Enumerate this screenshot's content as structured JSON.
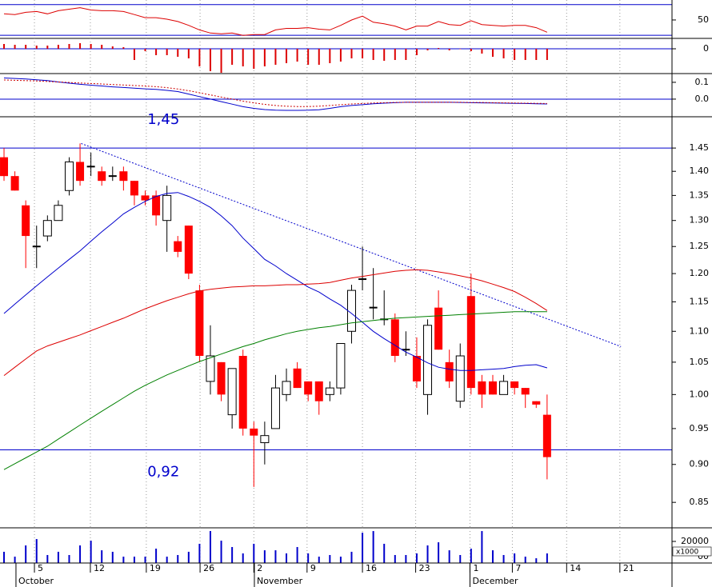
{
  "chart_data": {
    "type": "stock",
    "categories": [
      null,
      null,
      null,
      null,
      null,
      null,
      null,
      null,
      null,
      null,
      null,
      null,
      null,
      null,
      null,
      null,
      null,
      null,
      null,
      null,
      null,
      null,
      null,
      null,
      null,
      null,
      null,
      null,
      null,
      null,
      null,
      null,
      null,
      null,
      null,
      null,
      null,
      null,
      null,
      null,
      null,
      null,
      null,
      null,
      null,
      null,
      null,
      null,
      null,
      null,
      null
    ],
    "xlim": [
      -0.37,
      61.5
    ],
    "xticks": [
      {
        "value": 2.8,
        "label": "5"
      },
      {
        "value": 7.95,
        "label": "12"
      },
      {
        "value": 13.1,
        "label": "19"
      },
      {
        "value": 18.05,
        "label": "26"
      },
      {
        "value": 23.0,
        "label": "2"
      },
      {
        "value": 27.9,
        "label": "9"
      },
      {
        "value": 33.0,
        "label": "16"
      },
      {
        "value": 37.9,
        "label": "23"
      },
      {
        "value": 42.9,
        "label": "1"
      },
      {
        "value": 46.8,
        "label": "7"
      },
      {
        "value": 51.8,
        "label": "14"
      },
      {
        "value": 56.7,
        "label": "21"
      }
    ],
    "month_ticks": [
      {
        "value": 1.1,
        "label": "October"
      },
      {
        "value": 23.05,
        "label": "November"
      },
      {
        "value": 42.9,
        "label": "December"
      }
    ],
    "grid": true,
    "panels": [
      {
        "type": "line",
        "ylim": [
          26,
          76
        ],
        "yticks": [
          50
        ],
        "levels": [
          30,
          70
        ],
        "level_color": "#0000cc",
        "series": [
          {
            "color": "#dd0000",
            "values": [
              58,
              57,
              60,
              61,
              58,
              62,
              64,
              66,
              63,
              62,
              62,
              61,
              57,
              53,
              53,
              51,
              48,
              43,
              37,
              33,
              32,
              33,
              30,
              31,
              31,
              37,
              39,
              39,
              40,
              38,
              37,
              43,
              50,
              55,
              47,
              45,
              42,
              37,
              42,
              42,
              48,
              44,
              43,
              49,
              44,
              43,
              42,
              43,
              43,
              40,
              34
            ]
          }
        ]
      },
      {
        "type": "bar",
        "ylim": [
          -3.1,
          1.3
        ],
        "yticks": [
          0
        ],
        "levels": [
          0
        ],
        "level_color": "#0000cc",
        "color": "#dd0000",
        "values": [
          0.6,
          0.5,
          0.5,
          0.4,
          0.4,
          0.5,
          0.6,
          0.7,
          0.6,
          0.5,
          0.3,
          0.2,
          -1.4,
          -0.3,
          -0.8,
          -0.8,
          -1.0,
          -1.2,
          -2.2,
          -2.8,
          -3.0,
          -2.0,
          -2.2,
          -2.5,
          -2.2,
          -2.0,
          -1.8,
          -1.6,
          -2.0,
          -2.0,
          -1.8,
          -1.6,
          -1.2,
          -1.2,
          -1.4,
          -1.5,
          -1.4,
          -1.4,
          -0.8,
          -0.2,
          0.1,
          -0.2,
          0,
          -0.3,
          -0.6,
          -1.0,
          -1.2,
          -1.4,
          -1.4,
          -1.4,
          -1.4
        ]
      },
      {
        "type": "line",
        "ylim": [
          -0.105,
          0.152
        ],
        "yticks": [
          0.1,
          {
            "value": 0,
            "label": "0.0"
          }
        ],
        "levels": [
          0
        ],
        "level_color": "#0000cc",
        "series": [
          {
            "color": "#0000cc",
            "values": [
              0.126,
              0.123,
              0.12,
              0.115,
              0.11,
              0.102,
              0.095,
              0.088,
              0.083,
              0.078,
              0.073,
              0.069,
              0.065,
              0.061,
              0.058,
              0.052,
              0.045,
              0.03,
              0.015,
              0.0,
              -0.015,
              -0.03,
              -0.045,
              -0.055,
              -0.062,
              -0.066,
              -0.067,
              -0.067,
              -0.066,
              -0.063,
              -0.055,
              -0.045,
              -0.038,
              -0.033,
              -0.028,
              -0.024,
              -0.021,
              -0.019,
              -0.019,
              -0.019,
              -0.019,
              -0.019,
              -0.02,
              -0.021,
              -0.022,
              -0.023,
              -0.024,
              -0.025,
              -0.026,
              -0.028,
              -0.029
            ]
          },
          {
            "color": "#cc0000",
            "dashed": true,
            "values": [
              0.114,
              0.112,
              0.11,
              0.108,
              0.105,
              0.102,
              0.099,
              0.096,
              0.093,
              0.09,
              0.087,
              0.084,
              0.081,
              0.078,
              0.074,
              0.068,
              0.06,
              0.05,
              0.038,
              0.025,
              0.012,
              0.0,
              -0.012,
              -0.022,
              -0.031,
              -0.038,
              -0.042,
              -0.044,
              -0.044,
              -0.042,
              -0.038,
              -0.033,
              -0.029,
              -0.026,
              -0.023,
              -0.021,
              -0.02,
              -0.019,
              -0.019,
              -0.019,
              -0.019,
              -0.019,
              -0.019,
              -0.02,
              -0.02,
              -0.021,
              -0.022,
              -0.023,
              -0.024,
              -0.025,
              -0.026
            ]
          }
        ]
      },
      {
        "type": "candlestick",
        "log": true,
        "ylim": [
          0.818,
          1.52
        ],
        "yticks": [
          0.85,
          {
            "value": 0.9,
            "label": "0.90"
          },
          0.95,
          {
            "value": 1.0,
            "label": "1.00"
          },
          1.05,
          {
            "value": 1.1,
            "label": "1.10"
          },
          1.15,
          {
            "value": 1.2,
            "label": "1.20"
          },
          1.25,
          {
            "value": 1.3,
            "label": "1.30"
          },
          1.35,
          {
            "value": 1.4,
            "label": "1.40"
          },
          1.45
        ],
        "up_color": "#ffffff",
        "down_color": "#ff0000",
        "open": [
          1.43,
          1.39,
          1.33,
          1.25,
          1.27,
          1.3,
          1.36,
          1.42,
          1.41,
          1.4,
          1.39,
          1.4,
          1.38,
          1.35,
          1.35,
          1.3,
          1.26,
          1.29,
          1.17,
          1.02,
          1.05,
          0.97,
          1.06,
          0.95,
          0.93,
          0.95,
          1.0,
          1.04,
          1.02,
          1.02,
          1.0,
          1.01,
          1.1,
          1.19,
          1.14,
          1.12,
          1.12,
          1.07,
          1.06,
          1.0,
          1.14,
          1.05,
          0.99,
          1.16,
          1.02,
          1.02,
          1.0,
          1.02,
          1.01,
          0.99,
          0.97
        ],
        "high": [
          1.45,
          1.4,
          1.34,
          1.29,
          1.31,
          1.34,
          1.43,
          1.46,
          1.44,
          1.41,
          1.41,
          1.41,
          1.38,
          1.36,
          1.36,
          1.37,
          1.27,
          1.29,
          1.18,
          1.11,
          1.05,
          1.04,
          1.07,
          0.96,
          0.96,
          1.03,
          1.04,
          1.05,
          1.02,
          1.02,
          1.02,
          1.08,
          1.18,
          1.25,
          1.21,
          1.17,
          1.13,
          1.1,
          1.09,
          1.12,
          1.17,
          1.07,
          1.08,
          1.2,
          1.03,
          1.03,
          1.03,
          1.02,
          1.01,
          0.99,
          1.0
        ],
        "low": [
          1.38,
          1.36,
          1.21,
          1.21,
          1.26,
          1.3,
          1.35,
          1.37,
          1.39,
          1.37,
          1.38,
          1.36,
          1.33,
          1.33,
          1.29,
          1.24,
          1.23,
          1.19,
          1.05,
          1.0,
          0.99,
          0.95,
          0.94,
          0.87,
          0.9,
          0.95,
          0.99,
          1.01,
          0.99,
          0.97,
          0.99,
          1.0,
          1.08,
          1.17,
          1.12,
          1.11,
          1.05,
          1.06,
          1.01,
          0.97,
          1.07,
          1.01,
          0.98,
          1.0,
          0.98,
          1.0,
          1.0,
          1.0,
          0.98,
          0.98,
          0.88
        ],
        "close": [
          1.39,
          1.36,
          1.27,
          1.25,
          1.3,
          1.33,
          1.42,
          1.38,
          1.41,
          1.38,
          1.39,
          1.38,
          1.35,
          1.34,
          1.31,
          1.35,
          1.24,
          1.2,
          1.06,
          1.06,
          1.0,
          1.04,
          0.95,
          0.94,
          0.94,
          1.01,
          1.02,
          1.01,
          1.0,
          0.99,
          1.01,
          1.08,
          1.17,
          1.19,
          1.14,
          1.12,
          1.06,
          1.07,
          1.02,
          1.11,
          1.07,
          1.02,
          1.06,
          1.01,
          1.0,
          1.0,
          1.02,
          1.01,
          1.0,
          0.985,
          0.91
        ],
        "series": [
          {
            "color": "#0000cc",
            "values": [
              1.13,
              1.146,
              1.162,
              1.178,
              1.194,
              1.21,
              1.226,
              1.242,
              1.26,
              1.278,
              1.295,
              1.313,
              1.326,
              1.338,
              1.348,
              1.354,
              1.356,
              1.348,
              1.338,
              1.326,
              1.309,
              1.29,
              1.266,
              1.246,
              1.226,
              1.214,
              1.2,
              1.188,
              1.176,
              1.167,
              1.155,
              1.144,
              1.13,
              1.115,
              1.1,
              1.088,
              1.077,
              1.066,
              1.058,
              1.049,
              1.042,
              1.039,
              1.037,
              1.037,
              1.038,
              1.039,
              1.04,
              1.043,
              1.045,
              1.046,
              1.041
            ]
          },
          {
            "color": "#dd0000",
            "values": [
              1.029,
              1.042,
              1.055,
              1.068,
              1.076,
              1.082,
              1.088,
              1.094,
              1.101,
              1.108,
              1.115,
              1.122,
              1.13,
              1.138,
              1.145,
              1.152,
              1.158,
              1.164,
              1.169,
              1.172,
              1.174,
              1.176,
              1.177,
              1.178,
              1.178,
              1.179,
              1.18,
              1.18,
              1.181,
              1.182,
              1.184,
              1.188,
              1.192,
              1.195,
              1.198,
              1.201,
              1.204,
              1.206,
              1.207,
              1.206,
              1.203,
              1.2,
              1.196,
              1.192,
              1.187,
              1.181,
              1.175,
              1.168,
              1.158,
              1.147,
              1.135
            ]
          },
          {
            "color": "#008000",
            "values": [
              0.893,
              0.901,
              0.909,
              0.917,
              0.925,
              0.935,
              0.945,
              0.955,
              0.965,
              0.975,
              0.985,
              0.995,
              1.005,
              1.014,
              1.022,
              1.03,
              1.037,
              1.044,
              1.051,
              1.057,
              1.063,
              1.069,
              1.075,
              1.08,
              1.086,
              1.091,
              1.096,
              1.1,
              1.103,
              1.106,
              1.108,
              1.111,
              1.114,
              1.116,
              1.118,
              1.12,
              1.122,
              1.123,
              1.124,
              1.125,
              1.126,
              1.127,
              1.128,
              1.129,
              1.13,
              1.131,
              1.132,
              1.133,
              1.133,
              1.133,
              1.133
            ]
          }
        ],
        "levels": [
          1.45,
          0.92
        ],
        "level_labels": [
          "1,45",
          "0,92"
        ],
        "level_color": "#0000cc",
        "trendline": {
          "x": [
            7.1,
            56.8
          ],
          "y": [
            1.46,
            1.075
          ],
          "color": "#0000cc"
        }
      },
      {
        "type": "bar",
        "ylim": [
          0,
          32600
        ],
        "yticks": [
          {
            "value": 0,
            "label": "00"
          },
          20000
        ],
        "multiplier": "x1000",
        "color": "#0000cc",
        "values": [
          10400,
          5900,
          16300,
          22200,
          7400,
          10400,
          7400,
          16300,
          20700,
          11800,
          10400,
          5900,
          5900,
          5900,
          13300,
          5900,
          7400,
          10400,
          17800,
          29600,
          20700,
          14800,
          8900,
          17800,
          11800,
          11800,
          8900,
          14800,
          8900,
          5900,
          7400,
          5900,
          10400,
          28100,
          29600,
          17800,
          7400,
          7400,
          8900,
          16300,
          19200,
          11800,
          7400,
          13300,
          29600,
          11800,
          7400,
          8900,
          5900,
          4400,
          8900
        ]
      }
    ]
  }
}
